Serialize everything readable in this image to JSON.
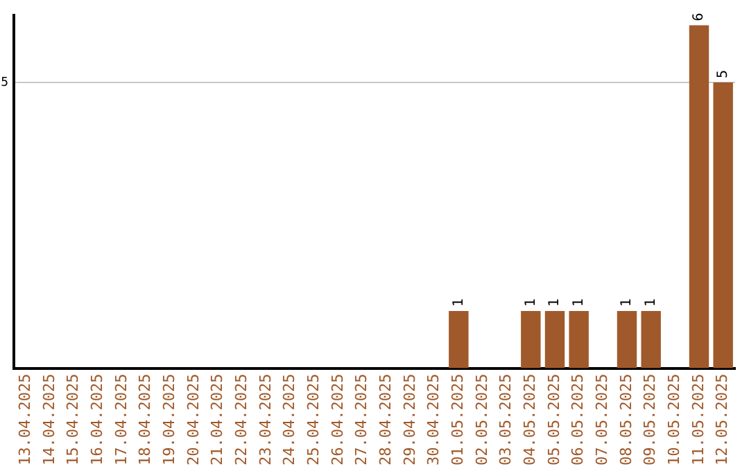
{
  "chart_data": {
    "type": "bar",
    "categories": [
      "13.04.2025",
      "14.04.2025",
      "15.04.2025",
      "16.04.2025",
      "17.04.2025",
      "18.04.2025",
      "19.04.2025",
      "20.04.2025",
      "21.04.2025",
      "22.04.2025",
      "23.04.2025",
      "24.04.2025",
      "25.04.2025",
      "26.04.2025",
      "27.04.2025",
      "28.04.2025",
      "29.04.2025",
      "30.04.2025",
      "01.05.2025",
      "02.05.2025",
      "03.05.2025",
      "04.05.2025",
      "05.05.2025",
      "06.05.2025",
      "07.05.2025",
      "08.05.2025",
      "09.05.2025",
      "10.05.2025",
      "11.05.2025",
      "12.05.2025"
    ],
    "values": [
      null,
      null,
      null,
      null,
      null,
      null,
      null,
      null,
      null,
      null,
      null,
      null,
      null,
      null,
      null,
      null,
      null,
      null,
      1,
      null,
      null,
      1,
      1,
      1,
      null,
      1,
      1,
      null,
      6,
      5
    ],
    "value_labels": [
      null,
      null,
      null,
      null,
      null,
      null,
      null,
      null,
      null,
      null,
      null,
      null,
      null,
      null,
      null,
      null,
      null,
      null,
      "1",
      null,
      null,
      "1",
      "1",
      "1",
      null,
      "1",
      "1",
      null,
      "6",
      "5"
    ],
    "ylim": [
      0,
      6.2
    ],
    "color": "#a0592a",
    "ref_lines": [
      {
        "axis": "y",
        "value": 5,
        "label": "5",
        "color": "#c8c8c8"
      }
    ],
    "legend": false
  }
}
